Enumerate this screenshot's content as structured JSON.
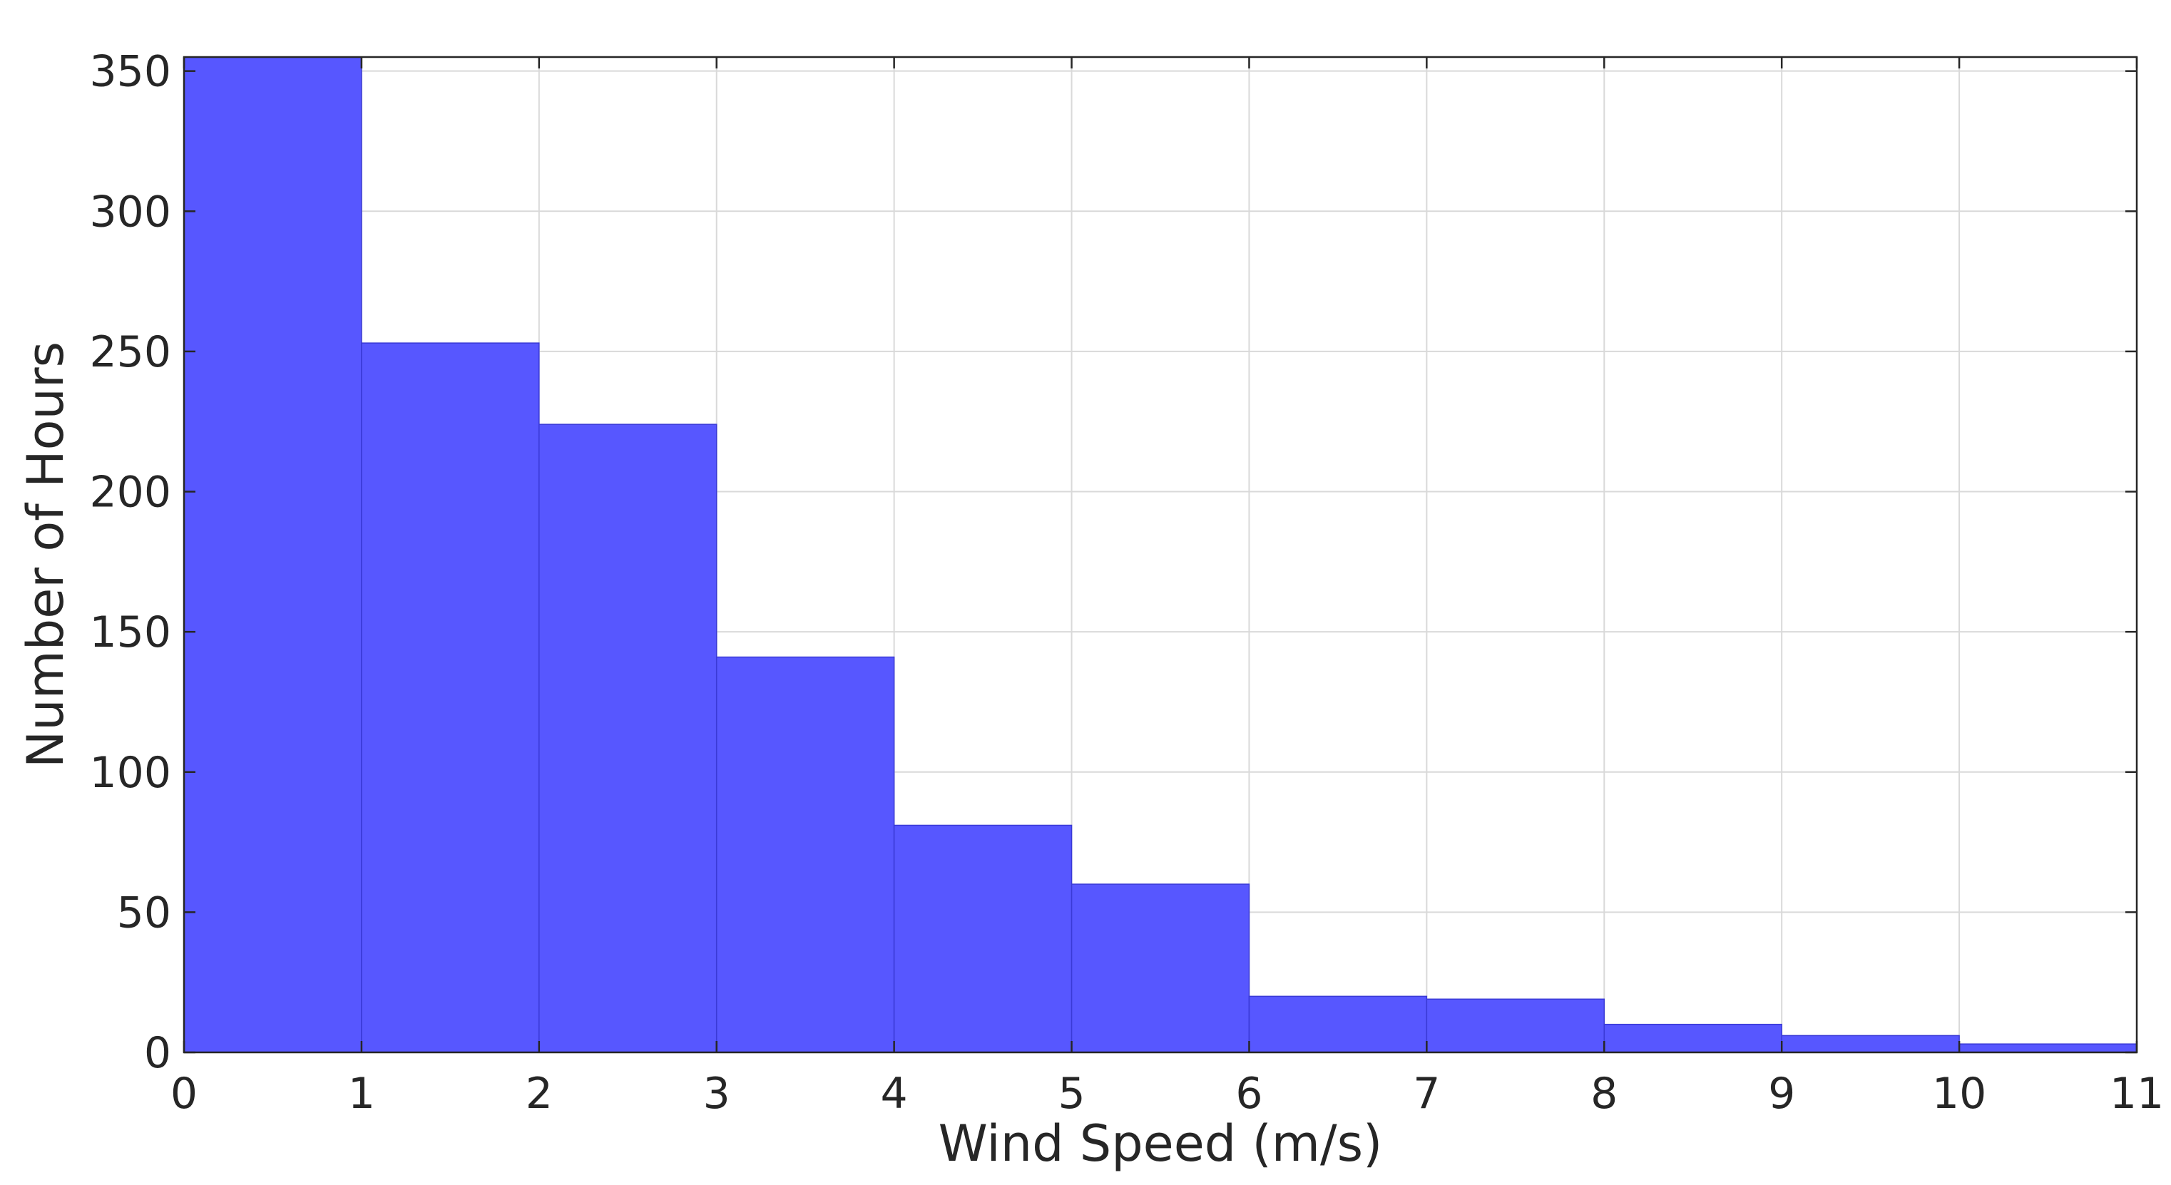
{
  "chart_data": {
    "type": "bar",
    "histogram": true,
    "bin_edges": [
      0,
      1,
      2,
      3,
      4,
      5,
      6,
      7,
      8,
      9,
      10,
      11
    ],
    "values": [
      355,
      253,
      224,
      141,
      81,
      60,
      20,
      19,
      10,
      6,
      3
    ],
    "xlabel": "Wind Speed (m/s)",
    "ylabel": "Number of Hours",
    "xlim": [
      0,
      11
    ],
    "ylim": [
      0,
      355
    ],
    "xticks": [
      0,
      1,
      2,
      3,
      4,
      5,
      6,
      7,
      8,
      9,
      10,
      11
    ],
    "yticks": [
      0,
      50,
      100,
      150,
      200,
      250,
      300,
      350
    ],
    "grid": true,
    "bar_color": "#5757ff",
    "edge_color": "#3a3ad6",
    "axis_color": "#262626",
    "grid_color": "#d9d9d9"
  }
}
